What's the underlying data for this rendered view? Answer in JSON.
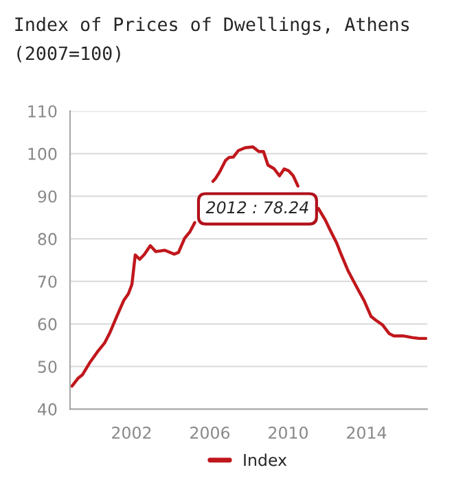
{
  "chart_data": {
    "type": "line",
    "title": "Index of Prices of Dwellings, Athens",
    "subtitle": "(2007=100)",
    "annotations": [
      "2012 : 78.24"
    ],
    "series": [
      {
        "name": "Index",
        "color": "#c0171c",
        "x": [
          1998.96,
          1999.26,
          1999.5,
          1999.85,
          2000.3,
          2000.62,
          2000.9,
          2001.25,
          2001.6,
          2001.84,
          2002.02,
          2002.19,
          2002.42,
          2002.65,
          2002.96,
          2003.24,
          2003.7,
          2004.18,
          2004.4,
          2004.71,
          2004.99,
          2005.23,
          2005.58,
          2005.9,
          2006.16,
          2006.28,
          2006.5,
          2006.8,
          2006.98,
          2007.2,
          2007.45,
          2007.8,
          2008.2,
          2008.5,
          2008.74,
          2008.97,
          2009.27,
          2009.56,
          2009.8,
          2010.02,
          2010.26,
          2010.5,
          2011.0,
          2011.55,
          2011.9,
          2012.13,
          2012.48,
          2012.71,
          2013.06,
          2013.3,
          2013.65,
          2013.88,
          2014.23,
          2014.47,
          2014.82,
          2015.17,
          2015.4,
          2015.87,
          2016.34,
          2016.69,
          2017.04
        ],
        "values": [
          45.4,
          47.2,
          48.1,
          50.8,
          53.7,
          55.5,
          58.0,
          61.8,
          65.5,
          67.1,
          69.3,
          76.2,
          75.2,
          76.3,
          78.4,
          77.0,
          77.3,
          76.4,
          76.8,
          80.1,
          81.7,
          83.8,
          null,
          null,
          93.5,
          94.1,
          95.7,
          98.4,
          99.1,
          99.2,
          100.7,
          101.4,
          101.6,
          100.5,
          100.5,
          97.3,
          96.5,
          94.8,
          96.4,
          96.0,
          94.8,
          92.4,
          null,
          87.1,
          84.4,
          82.2,
          79.0,
          76.3,
          72.5,
          70.4,
          67.4,
          65.5,
          61.8,
          60.9,
          59.8,
          57.7,
          57.2,
          57.2,
          56.8,
          56.6,
          56.6
        ]
      }
    ],
    "xlim": [
      1998.86,
      2017.1
    ],
    "xticks": [
      2002,
      2006,
      2010,
      2014
    ],
    "ylim": [
      40,
      110
    ],
    "yticks": [
      40,
      50,
      60,
      70,
      80,
      90,
      100,
      110
    ],
    "grid": "y",
    "legend": "bottom"
  }
}
